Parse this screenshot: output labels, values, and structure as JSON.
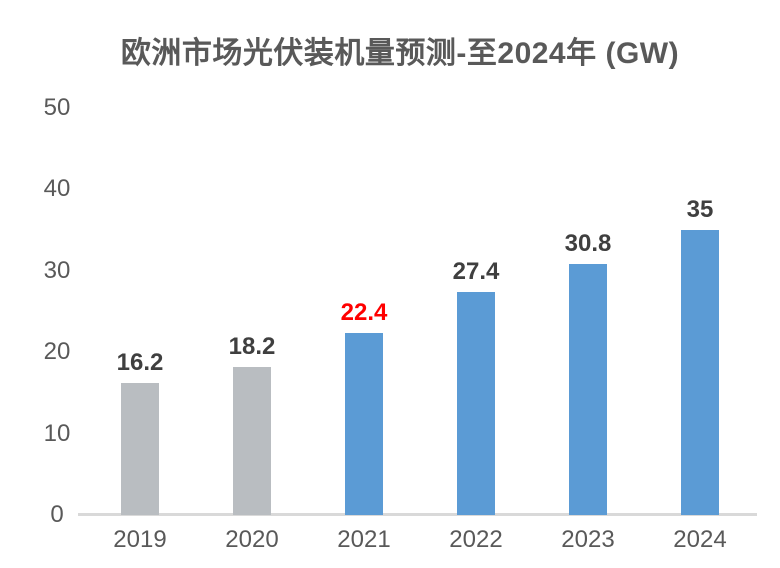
{
  "chart_data": {
    "type": "bar",
    "title": "欧洲市场光伏装机量预测-至2024年 (GW)",
    "xlabel": "",
    "ylabel": "",
    "categories": [
      "2019",
      "2020",
      "2021",
      "2022",
      "2023",
      "2024"
    ],
    "values": [
      16.2,
      18.2,
      22.4,
      27.4,
      30.8,
      35
    ],
    "value_labels": [
      "16.2",
      "18.2",
      "22.4",
      "27.4",
      "30.8",
      "35"
    ],
    "ylim": [
      0,
      50
    ],
    "yticks": [
      0,
      10,
      20,
      30,
      40,
      50
    ],
    "grid": false,
    "legend": "none",
    "colors": {
      "bar_colors": [
        "#b9bdc1",
        "#b9bdc1",
        "#5b9bd5",
        "#5b9bd5",
        "#5b9bd5",
        "#5b9bd5"
      ],
      "label_colors": [
        "#3f3f3f",
        "#3f3f3f",
        "#ff0000",
        "#3f3f3f",
        "#3f3f3f",
        "#3f3f3f"
      ],
      "historical_bar": "#b9bdc1",
      "forecast_bar": "#5b9bd5",
      "title_text": "#595959",
      "tick_text": "#595959",
      "axis_line": "#d9d9d9",
      "background": "#ffffff"
    }
  }
}
